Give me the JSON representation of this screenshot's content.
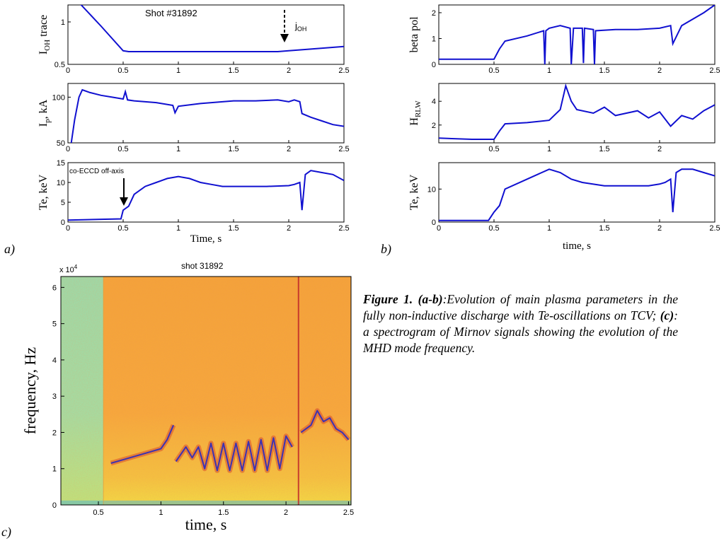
{
  "panel_labels": {
    "a": "a)",
    "b": "b)",
    "c": "c)"
  },
  "caption": {
    "title": "Figure 1.",
    "ab_label": "(a-b)",
    "ab_text": ":Evolution of main plasma parameters in the fully non-inductive discharge with Te-oscillations on TCV;",
    "c_label": "(c)",
    "c_text": ": a spectrogram of Mirnov signals showing the evolution of the MHD mode frequency."
  },
  "annotations": {
    "shot_a": "Shot #31892",
    "joh_main": "j",
    "joh_sub": "OH",
    "eccd": "co-ECCD off-axis",
    "shot_c": "shot 31892",
    "exp_base": "x 10",
    "exp_power": "4"
  },
  "colors": {
    "trace": "#1010d0",
    "axis": "#000000"
  },
  "chart_data": [
    {
      "id": "a1",
      "type": "line",
      "ylabel_main": "I",
      "ylabel_sub": "OH",
      "ylabel_rest": " trace",
      "xlim": [
        0,
        2.5
      ],
      "ylim": [
        0.5,
        1.2
      ],
      "xticks": [
        "0",
        "0.5",
        "1",
        "1.5",
        "2",
        "2.5"
      ],
      "yticks": [
        {
          "v": 0.5,
          "label": "0.5"
        },
        {
          "v": 1,
          "label": "1"
        }
      ],
      "x": [
        0.0,
        0.12,
        0.3,
        0.5,
        0.55,
        1.0,
        1.5,
        1.9,
        2.0,
        2.2,
        2.5
      ],
      "y": [
        1.3,
        1.2,
        0.95,
        0.66,
        0.65,
        0.65,
        0.65,
        0.65,
        0.66,
        0.68,
        0.71
      ]
    },
    {
      "id": "a2",
      "type": "line",
      "ylabel_main": "I",
      "ylabel_sub": "p",
      "ylabel_rest": ", kA",
      "xlim": [
        0,
        2.5
      ],
      "ylim": [
        50,
        115
      ],
      "xticks": [
        "0",
        "0.5",
        "1",
        "1.5",
        "2",
        "2.5"
      ],
      "yticks": [
        {
          "v": 50,
          "label": "50"
        },
        {
          "v": 100,
          "label": "100"
        }
      ],
      "x": [
        0.03,
        0.06,
        0.1,
        0.13,
        0.2,
        0.3,
        0.4,
        0.5,
        0.52,
        0.54,
        0.6,
        0.8,
        0.95,
        0.97,
        1.0,
        1.2,
        1.3,
        1.5,
        1.7,
        1.9,
        2.0,
        2.05,
        2.1,
        2.12,
        2.2,
        2.3,
        2.4,
        2.5
      ],
      "y": [
        50,
        75,
        100,
        108,
        105,
        102,
        100,
        98,
        106,
        97,
        96,
        94,
        91,
        83,
        90,
        93,
        94,
        96,
        96,
        97,
        95,
        97,
        95,
        82,
        78,
        74,
        70,
        68
      ]
    },
    {
      "id": "a3",
      "type": "line",
      "ylabel_main": "Te, keV",
      "ylabel_sub": "",
      "ylabel_rest": "",
      "xlabel": "Time, s",
      "xlim": [
        0,
        2.5
      ],
      "ylim": [
        0,
        15
      ],
      "xticks": [
        "0",
        "0.5",
        "1",
        "1.5",
        "2",
        "2.5"
      ],
      "yticks": [
        {
          "v": 0,
          "label": "0"
        },
        {
          "v": 5,
          "label": "5"
        },
        {
          "v": 10,
          "label": "10"
        },
        {
          "v": 15,
          "label": "15"
        }
      ],
      "x": [
        0.0,
        0.3,
        0.48,
        0.5,
        0.55,
        0.6,
        0.7,
        0.8,
        0.9,
        1.0,
        1.1,
        1.2,
        1.3,
        1.4,
        1.6,
        1.8,
        2.0,
        2.05,
        2.1,
        2.12,
        2.15,
        2.2,
        2.3,
        2.4,
        2.5
      ],
      "y": [
        0.5,
        0.7,
        0.8,
        3,
        4,
        7,
        9,
        10,
        11,
        11.5,
        11,
        10,
        9.5,
        9,
        9,
        9,
        9.2,
        9.5,
        10,
        3,
        12,
        13,
        12.5,
        12,
        10.5
      ]
    },
    {
      "id": "b1",
      "type": "line",
      "ylabel_main": "beta pol",
      "ylabel_sub": "",
      "ylabel_rest": "",
      "xlim": [
        0,
        2.5
      ],
      "ylim": [
        0,
        2.3
      ],
      "xticks": [
        "0.5",
        "1",
        "1.5",
        "2",
        "2.5"
      ],
      "yticks": [
        {
          "v": 0,
          "label": "0"
        },
        {
          "v": 1,
          "label": "1"
        },
        {
          "v": 2,
          "label": "2"
        }
      ],
      "x": [
        0.0,
        0.3,
        0.5,
        0.55,
        0.6,
        0.8,
        0.95,
        0.96,
        0.97,
        1.0,
        1.1,
        1.19,
        1.2,
        1.22,
        1.3,
        1.31,
        1.32,
        1.4,
        1.41,
        1.42,
        1.6,
        1.8,
        2.0,
        2.1,
        2.12,
        2.2,
        2.4,
        2.5
      ],
      "y": [
        0.2,
        0.2,
        0.2,
        0.6,
        0.9,
        1.1,
        1.3,
        0.0,
        1.3,
        1.4,
        1.5,
        1.4,
        0.0,
        1.4,
        1.4,
        0.05,
        1.4,
        1.35,
        0.0,
        1.3,
        1.35,
        1.35,
        1.4,
        1.5,
        0.8,
        1.5,
        2.0,
        2.3
      ]
    },
    {
      "id": "b2",
      "type": "line",
      "ylabel_main": "H",
      "ylabel_sub": "RLW",
      "ylabel_rest": "",
      "xlim": [
        0,
        2.5
      ],
      "ylim": [
        0.5,
        5.5
      ],
      "xticks": [
        "0.5",
        "1",
        "1.5",
        "2"
      ],
      "yticks": [
        {
          "v": 2,
          "label": "2"
        },
        {
          "v": 4,
          "label": "4"
        }
      ],
      "x": [
        0.0,
        0.3,
        0.5,
        0.55,
        0.6,
        0.8,
        1.0,
        1.1,
        1.15,
        1.2,
        1.25,
        1.4,
        1.5,
        1.6,
        1.8,
        1.9,
        2.0,
        2.1,
        2.2,
        2.3,
        2.4,
        2.5
      ],
      "y": [
        0.9,
        0.8,
        0.8,
        1.5,
        2.1,
        2.2,
        2.4,
        3.3,
        5.3,
        4.0,
        3.3,
        3.0,
        3.5,
        2.8,
        3.2,
        2.6,
        3.1,
        1.9,
        2.8,
        2.5,
        3.2,
        3.7
      ]
    },
    {
      "id": "b3",
      "type": "line",
      "ylabel_main": "Te, keV",
      "ylabel_sub": "",
      "ylabel_rest": "",
      "xlabel": "time, s",
      "xlim": [
        0,
        2.5
      ],
      "ylim": [
        0,
        18
      ],
      "xticks": [
        "0",
        "0.5",
        "1",
        "1.5",
        "2",
        "2.5"
      ],
      "yticks": [
        {
          "v": 0,
          "label": "0"
        },
        {
          "v": 10,
          "label": "10"
        }
      ],
      "x": [
        0.0,
        0.3,
        0.45,
        0.5,
        0.55,
        0.6,
        0.8,
        1.0,
        1.1,
        1.2,
        1.3,
        1.5,
        1.7,
        1.9,
        2.0,
        2.05,
        2.1,
        2.12,
        2.15,
        2.2,
        2.3,
        2.4,
        2.5
      ],
      "y": [
        0.5,
        0.5,
        0.5,
        3,
        5,
        10,
        13,
        16,
        15,
        13,
        12,
        11,
        11,
        11,
        11.5,
        12,
        13,
        3,
        15,
        16,
        16,
        15,
        14
      ]
    },
    {
      "id": "c",
      "type": "heatmap",
      "title": "shot 31892",
      "xlabel": "time, s",
      "ylabel": "frequency, Hz",
      "xlim": [
        0.2,
        2.52
      ],
      "ylim": [
        0,
        6.3
      ],
      "xticks": [
        {
          "v": 0.5,
          "label": "0.5"
        },
        {
          "v": 1,
          "label": "1"
        },
        {
          "v": 1.5,
          "label": "1.5"
        },
        {
          "v": 2,
          "label": "2"
        },
        {
          "v": 2.5,
          "label": "2.5"
        }
      ],
      "yticks": [
        {
          "v": 0,
          "label": "0"
        },
        {
          "v": 1,
          "label": "1"
        },
        {
          "v": 2,
          "label": "2"
        },
        {
          "v": 3,
          "label": "3"
        },
        {
          "v": 4,
          "label": "4"
        },
        {
          "v": 5,
          "label": "5"
        },
        {
          "v": 6,
          "label": "6"
        }
      ],
      "mode_x": [
        0.6,
        0.7,
        0.8,
        0.9,
        1.0,
        1.05,
        1.1
      ],
      "mode_y": [
        1.15,
        1.25,
        1.35,
        1.45,
        1.55,
        1.8,
        2.2
      ],
      "mode2_x": [
        1.12,
        1.2,
        1.25,
        1.3,
        1.35,
        1.4,
        1.45,
        1.5,
        1.55,
        1.6,
        1.65,
        1.7,
        1.75,
        1.8,
        1.85,
        1.9,
        1.95,
        2.0,
        2.05
      ],
      "mode2_y": [
        1.2,
        1.6,
        1.3,
        1.6,
        1.0,
        1.7,
        0.95,
        1.7,
        0.95,
        1.7,
        0.95,
        1.75,
        0.95,
        1.8,
        0.95,
        1.85,
        1.0,
        1.9,
        1.6
      ],
      "mode3_x": [
        2.12,
        2.2,
        2.25,
        2.3,
        2.35,
        2.4,
        2.45,
        2.5
      ],
      "mode3_y": [
        2.0,
        2.2,
        2.6,
        2.3,
        2.4,
        2.1,
        2.0,
        1.8
      ]
    }
  ]
}
